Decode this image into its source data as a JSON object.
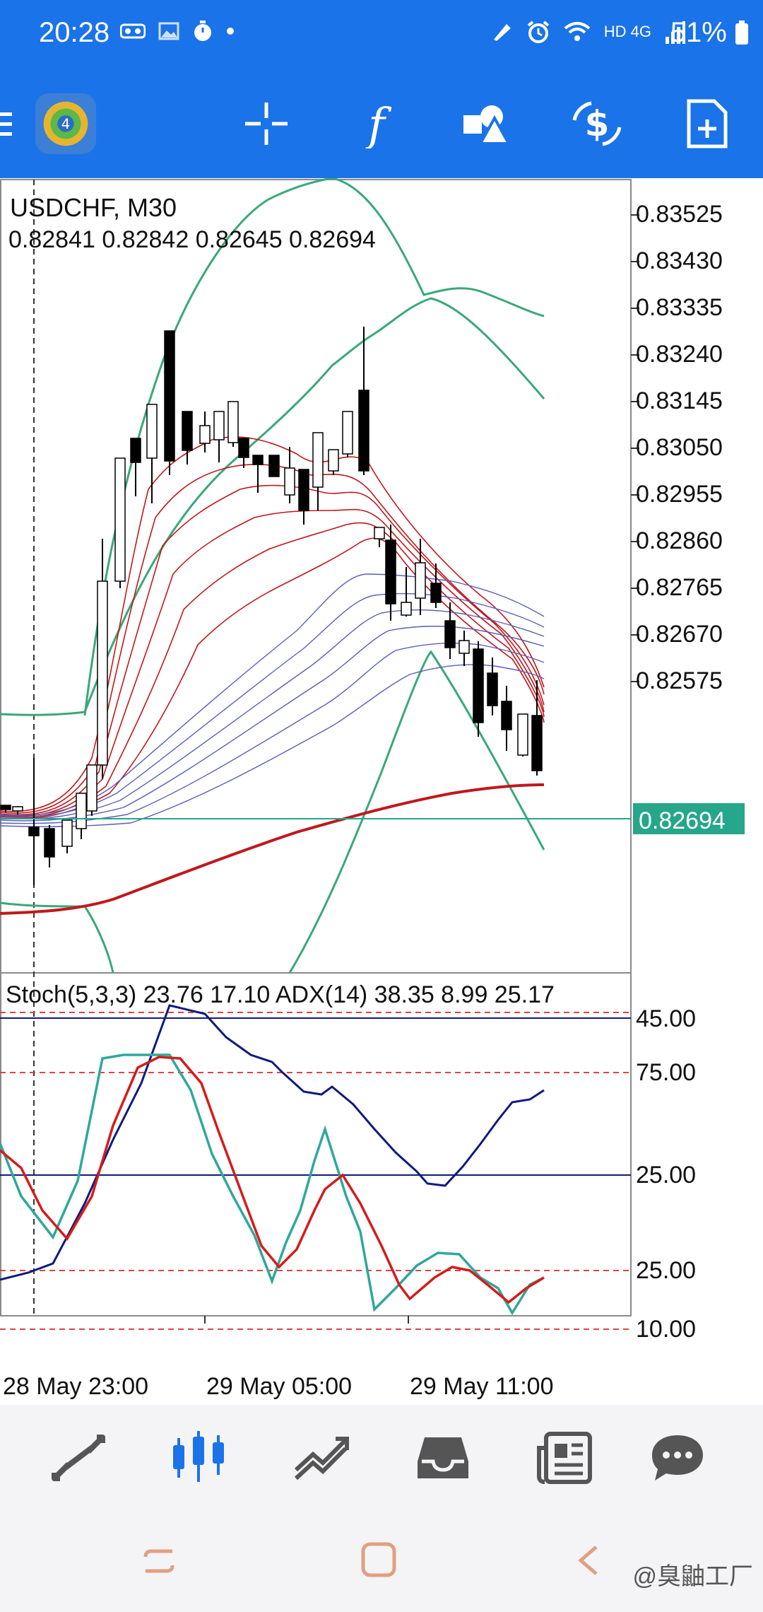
{
  "status_bar": {
    "time": "20:28",
    "network": "HD 4G",
    "battery": "51%"
  },
  "chart": {
    "symbol_timeframe": "USDCHF, M30",
    "ohlc": "0.82841 0.82842 0.82645 0.82694",
    "price_axis": [
      "0.83525",
      "0.83430",
      "0.83335",
      "0.83240",
      "0.83145",
      "0.83050",
      "0.82955",
      "0.82860",
      "0.82765",
      "0.82670",
      "0.82575"
    ],
    "current_price": "0.82694",
    "indicator_label": "Stoch(5,3,3) 23.76 17.10 ADX(14) 38.35 8.99 25.17",
    "indicator_axis": [
      "45.00",
      "75.00",
      "25.00",
      "25.00",
      "10.00"
    ],
    "time_axis": [
      "28 May 23:00",
      "29 May 05:00",
      "29 May 11:00"
    ],
    "colors": {
      "up_candle": "#ffffff",
      "down_candle": "#000000",
      "bollinger": "#3aa879",
      "ma_red": "#c0181c",
      "ma_blue": "#5b5fb8",
      "stoch_main": "#2fa89a",
      "stoch_signal": "#d41c1c",
      "adx": "#101a7c",
      "price_tag": "#26a68a"
    }
  },
  "bottom_nav": {
    "items": [
      "quotes-icon",
      "chart-icon",
      "trade-icon",
      "history-icon",
      "news-icon",
      "chat-icon"
    ],
    "active": "chart-icon"
  },
  "watermark": "@臭鼬工厂"
}
